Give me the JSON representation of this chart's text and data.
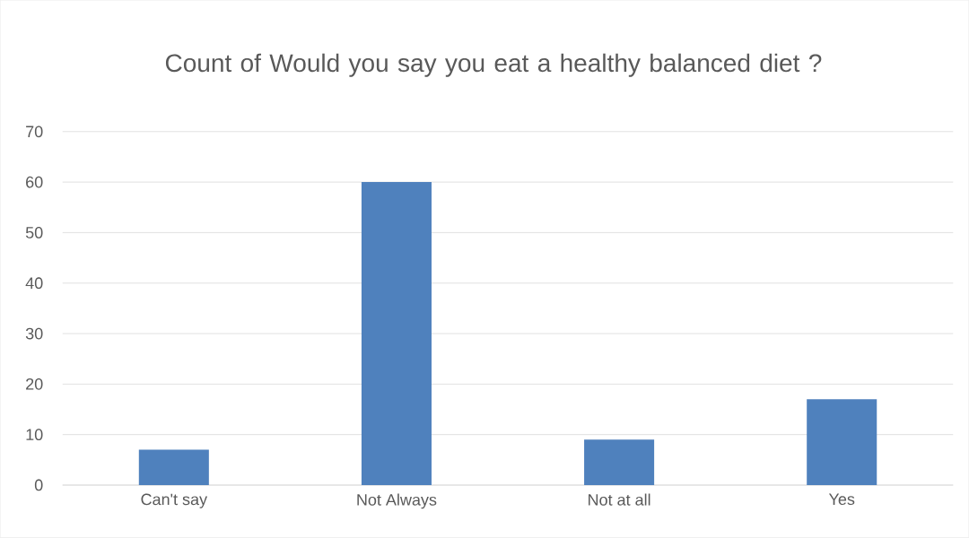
{
  "chart_data": {
    "type": "bar",
    "title": "Count of Would you say you eat a healthy balanced diet ?",
    "categories": [
      "Can't say",
      "Not Always",
      "Not at all",
      "Yes"
    ],
    "values": [
      7,
      60,
      9,
      17
    ],
    "color": "#4f81bd",
    "ylim": [
      0,
      70
    ],
    "yticks": [
      0,
      10,
      20,
      30,
      40,
      50,
      60,
      70
    ],
    "grid": "y"
  }
}
